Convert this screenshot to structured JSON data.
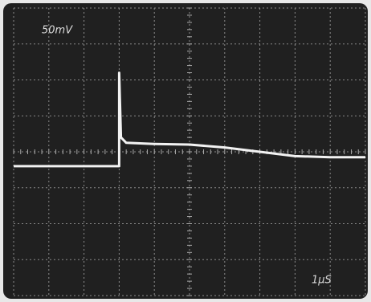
{
  "chart_data": {
    "type": "line",
    "annotations": [
      "50mV",
      "1µS"
    ],
    "x": [
      0,
      3.0,
      3.0,
      3.05,
      3.2,
      4,
      5,
      6,
      7,
      8,
      9,
      10
    ],
    "values": [
      -0.4,
      -0.4,
      2.2,
      0.4,
      0.25,
      0.22,
      0.2,
      0.12,
      0.0,
      -0.12,
      -0.15,
      -0.15
    ],
    "color": "#f2f2f2",
    "xlim": [
      0,
      10
    ],
    "ylim": [
      -4,
      4
    ],
    "grid": true
  }
}
